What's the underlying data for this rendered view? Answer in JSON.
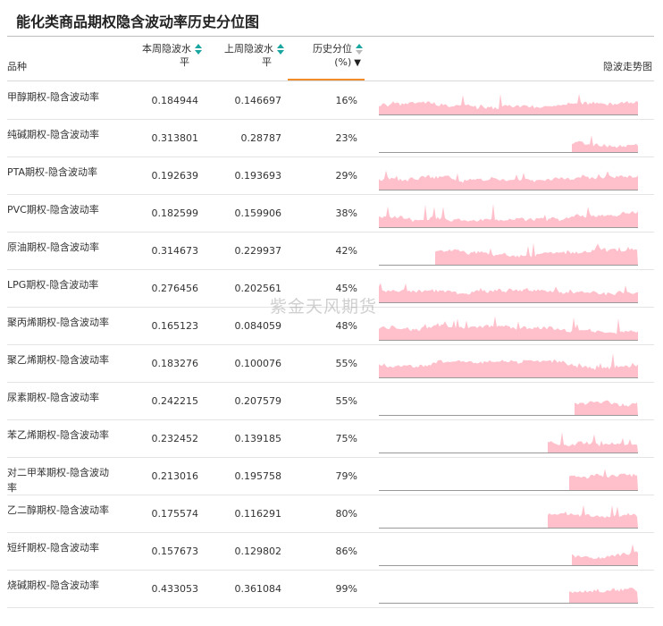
{
  "title": "能化类商品期权隐含波动率历史分位图",
  "watermark": "紫金天风期货",
  "chart_data": {
    "type": "table",
    "title": "能化类商品期权隐含波动率历史分位图",
    "columns": {
      "name": "品种",
      "current_line1": "本周隐波水",
      "current_line2": "平",
      "previous_line1": "上周隐波水",
      "previous_line2": "平",
      "percentile_line1": "历史分位",
      "percentile_line2": "(%)",
      "trend": "隐波走势图"
    },
    "sort": {
      "column": "percentile",
      "order": "ascending"
    },
    "colors": {
      "sparkline_fill": "#ffc0cb",
      "accent": "#f08c2a",
      "sort_icon": "#1aa6a0"
    },
    "rows": [
      {
        "name": "甲醇期权-隐含波动率",
        "current": "0.184944",
        "previous": "0.146697",
        "percentile": "16%",
        "trend_start": 0.0,
        "trend_level": 0.33,
        "trend_peak": 0.8
      },
      {
        "name": "纯碱期权-隐含波动率",
        "current": "0.313801",
        "previous": "0.28787",
        "percentile": "23%",
        "trend_start": 0.72,
        "trend_level": 0.35,
        "trend_peak": 0.75
      },
      {
        "name": "PTA期权-隐含波动率",
        "current": "0.192639",
        "previous": "0.193693",
        "percentile": "29%",
        "trend_start": 0.0,
        "trend_level": 0.37,
        "trend_peak": 0.75
      },
      {
        "name": "PVC期权-隐含波动率",
        "current": "0.182599",
        "previous": "0.159906",
        "percentile": "38%",
        "trend_start": 0.0,
        "trend_level": 0.42,
        "trend_peak": 0.9
      },
      {
        "name": "原油期权-隐含波动率",
        "current": "0.314673",
        "previous": "0.229937",
        "percentile": "42%",
        "trend_start": 0.21,
        "trend_level": 0.45,
        "trend_peak": 0.85
      },
      {
        "name": "LPG期权-隐含波动率",
        "current": "0.276456",
        "previous": "0.202561",
        "percentile": "45%",
        "trend_start": 0.0,
        "trend_level": 0.4,
        "trend_peak": 0.8
      },
      {
        "name": "聚丙烯期权-隐含波动率",
        "current": "0.165123",
        "previous": "0.084059",
        "percentile": "48%",
        "trend_start": 0.0,
        "trend_level": 0.45,
        "trend_peak": 0.9
      },
      {
        "name": "聚乙烯期权-隐含波动率",
        "current": "0.183276",
        "previous": "0.100076",
        "percentile": "55%",
        "trend_start": 0.0,
        "trend_level": 0.45,
        "trend_peak": 0.95
      },
      {
        "name": "尿素期权-隐含波动率",
        "current": "0.242215",
        "previous": "0.207579",
        "percentile": "55%",
        "trend_start": 0.73,
        "trend_level": 0.45,
        "trend_peak": 0.95
      },
      {
        "name": "苯乙烯期权-隐含波动率",
        "current": "0.232452",
        "previous": "0.139185",
        "percentile": "75%",
        "trend_start": 0.63,
        "trend_level": 0.42,
        "trend_peak": 0.8
      },
      {
        "name": "对二甲苯期权-隐含波动率",
        "current": "0.213016",
        "previous": "0.195758",
        "percentile": "79%",
        "trend_start": 0.71,
        "trend_level": 0.5,
        "trend_peak": 0.9
      },
      {
        "name": "乙二醇期权-隐含波动率",
        "current": "0.175574",
        "previous": "0.116291",
        "percentile": "80%",
        "trend_start": 0.63,
        "trend_level": 0.5,
        "trend_peak": 0.95
      },
      {
        "name": "短纤期权-隐含波动率",
        "current": "0.157673",
        "previous": "0.129802",
        "percentile": "86%",
        "trend_start": 0.72,
        "trend_level": 0.35,
        "trend_peak": 0.95
      },
      {
        "name": "烧碱期权-隐含波动率",
        "current": "0.433053",
        "previous": "0.361084",
        "percentile": "99%",
        "trend_start": 0.71,
        "trend_level": 0.4,
        "trend_peak": 0.98
      }
    ]
  }
}
